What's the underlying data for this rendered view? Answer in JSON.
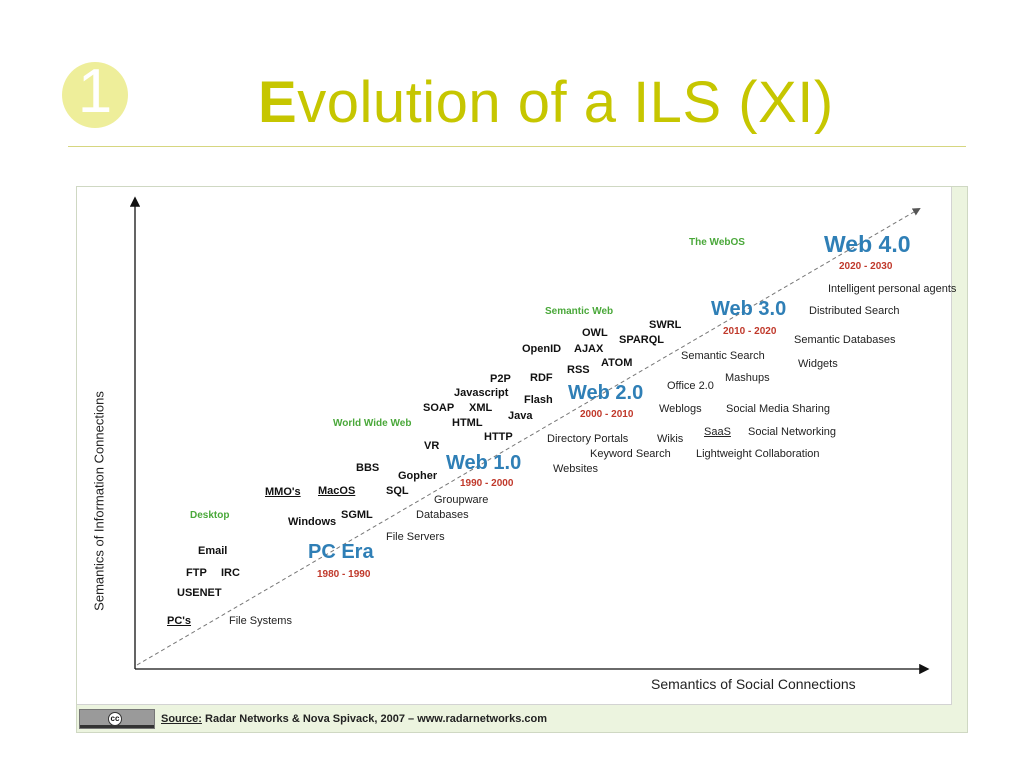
{
  "slide": {
    "number": "1",
    "title_first_letter": "E",
    "title_rest": "volution of a ILS (XI)"
  },
  "figure": {
    "y_axis_label": "Semantics of Information Connections",
    "x_axis_label": "Semantics of Social Connections",
    "eras": {
      "pc": {
        "name": "PC Era",
        "years": "1980 - 1990"
      },
      "web1": {
        "name": "Web 1.0",
        "years": "1990 - 2000"
      },
      "web2": {
        "name": "Web 2.0",
        "years": "2000 - 2010"
      },
      "web3": {
        "name": "Web 3.0",
        "years": "2010 - 2020"
      },
      "web4": {
        "name": "Web 4.0",
        "years": "2020 - 2030"
      }
    },
    "categories": {
      "desktop": "Desktop",
      "www": "World Wide Web",
      "semantic_web": "Semantic Web",
      "webos": "The WebOS"
    },
    "tech": {
      "pcs": "PC's",
      "usenet": "USENET",
      "ftp": "FTP",
      "irc": "IRC",
      "email": "Email",
      "windows": "Windows",
      "mmos": "MMO's",
      "macos": "MacOS",
      "sgml": "SGML",
      "sql": "SQL",
      "bbs": "BBS",
      "gopher": "Gopher",
      "vr": "VR",
      "http": "HTTP",
      "html": "HTML",
      "soap": "SOAP",
      "xml": "XML",
      "java": "Java",
      "javascript": "Javascript",
      "flash": "Flash",
      "p2p": "P2P",
      "rdf": "RDF",
      "rss": "RSS",
      "openid": "OpenID",
      "ajax": "AJAX",
      "owl": "OWL",
      "atom": "ATOM",
      "sparql": "SPARQL",
      "swrl": "SWRL"
    },
    "apps": {
      "file_systems": "File Systems",
      "file_servers": "File Servers",
      "databases": "Databases",
      "groupware": "Groupware",
      "websites": "Websites",
      "keyword_search": "Keyword Search",
      "directory_portals": "Directory Portals",
      "wikis": "Wikis",
      "lightweight_collab": "Lightweight Collaboration",
      "saas": "SaaS",
      "social_networking": "Social Networking",
      "weblogs": "Weblogs",
      "social_media_sharing": "Social Media Sharing",
      "office20": "Office 2.0",
      "mashups": "Mashups",
      "semantic_search": "Semantic Search",
      "widgets": "Widgets",
      "semantic_databases": "Semantic Databases",
      "distributed_search": "Distributed Search",
      "intelligent_agents": "Intelligent personal agents"
    },
    "source_label": "Source:",
    "source_text": "Radar Networks & Nova Spivack, 2007 – www.radarnetworks.com",
    "cc_symbol": "cc"
  },
  "colors": {
    "title": "#c6c600",
    "era_blue": "#2f7fb6",
    "years_red": "#c0392b",
    "category_green": "#4aa83a"
  }
}
